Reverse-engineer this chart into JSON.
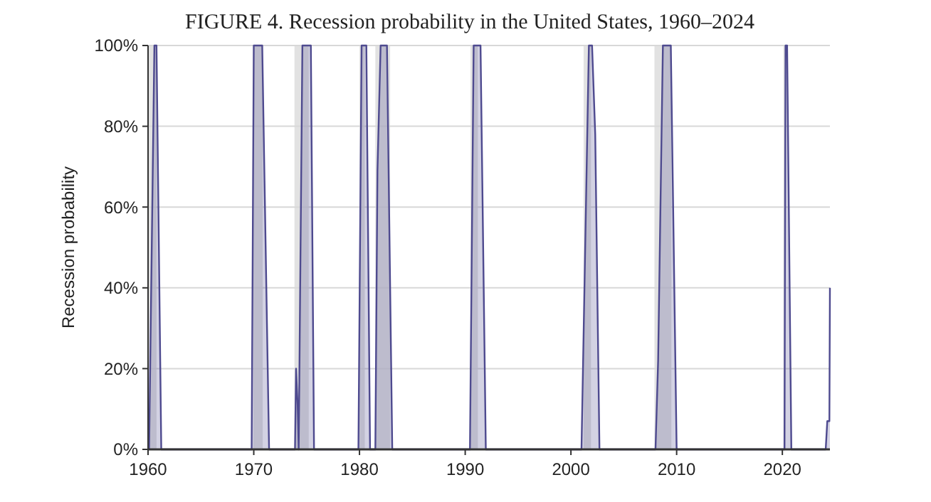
{
  "chart_data": {
    "type": "area",
    "title": "FIGURE 4. Recession probability in the United States, 1960–2024",
    "ylabel": "Recession probability",
    "xlim": [
      1960,
      2024.5
    ],
    "xticks": [
      1960,
      1970,
      1980,
      1990,
      2000,
      2010,
      2020
    ],
    "ylim": [
      0,
      100
    ],
    "yticks": [
      {
        "value": 0,
        "label": "0%"
      },
      {
        "value": 20,
        "label": "20%"
      },
      {
        "value": 40,
        "label": "40%"
      },
      {
        "value": 60,
        "label": "60%"
      },
      {
        "value": 80,
        "label": "80%"
      },
      {
        "value": 100,
        "label": "100%"
      }
    ],
    "grid": "y",
    "bands": [
      {
        "axis": "x",
        "from": 1960.0,
        "to": 1960.8,
        "color": "#e2e2e2"
      },
      {
        "axis": "x",
        "from": 1969.95,
        "to": 1970.85,
        "color": "#e2e2e2"
      },
      {
        "axis": "x",
        "from": 1973.85,
        "to": 1975.2,
        "color": "#e2e2e2"
      },
      {
        "axis": "x",
        "from": 1980.0,
        "to": 1980.5,
        "color": "#e2e2e2"
      },
      {
        "axis": "x",
        "from": 1981.5,
        "to": 1982.9,
        "color": "#e2e2e2"
      },
      {
        "axis": "x",
        "from": 1990.5,
        "to": 1991.2,
        "color": "#e2e2e2"
      },
      {
        "axis": "x",
        "from": 2001.2,
        "to": 2001.9,
        "color": "#e2e2e2"
      },
      {
        "axis": "x",
        "from": 2007.9,
        "to": 2009.5,
        "color": "#e2e2e2"
      },
      {
        "axis": "x",
        "from": 2020.1,
        "to": 2020.3,
        "color": "#e2e2e2"
      }
    ],
    "series": [
      {
        "color": "#4e4a8f",
        "x": [
          1960,
          1960.1,
          1960.6,
          1960.8,
          1961.25,
          1969.8,
          1970.0,
          1970.8,
          1971.45,
          1973.9,
          1974.0,
          1974.15,
          1974.25,
          1974.6,
          1975.4,
          1975.7,
          1979.9,
          1980.2,
          1980.65,
          1981.0,
          1981.5,
          1981.7,
          1982.0,
          1982.6,
          1983.1,
          1990.45,
          1990.8,
          1991.45,
          1991.95,
          2001.0,
          2001.7,
          2002.0,
          2002.3,
          2002.7,
          2008.0,
          2008.25,
          2008.7,
          2009.45,
          2010.0,
          2020.2,
          2020.3,
          2020.45,
          2020.85,
          2024.1,
          2024.25,
          2024.45,
          2024.5
        ],
        "values": [
          0,
          0,
          100,
          100,
          0,
          0,
          100,
          100,
          0,
          0,
          20,
          11,
          0,
          100,
          100,
          0,
          0,
          100,
          100,
          0,
          0,
          69,
          100,
          100,
          0,
          0,
          100,
          100,
          0,
          0,
          100,
          100,
          78,
          0,
          0,
          22,
          100,
          100,
          0,
          0,
          100,
          100,
          0,
          0,
          7,
          7,
          40
        ]
      }
    ]
  }
}
